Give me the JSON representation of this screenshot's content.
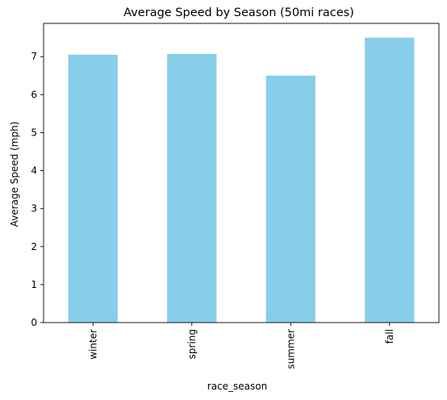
{
  "chart_data": {
    "type": "bar",
    "title": "Average Speed by Season (50mi races)",
    "xlabel": "race_season",
    "ylabel": "Average Speed (mph)",
    "categories": [
      "winter",
      "spring",
      "summer",
      "fall"
    ],
    "values": [
      7.05,
      7.07,
      6.5,
      7.5
    ],
    "ylim": [
      0,
      7.875
    ],
    "yticks": [
      0,
      1,
      2,
      3,
      4,
      5,
      6,
      7
    ],
    "bar_color": "#87CEEB",
    "grid": false,
    "legend": "none"
  }
}
